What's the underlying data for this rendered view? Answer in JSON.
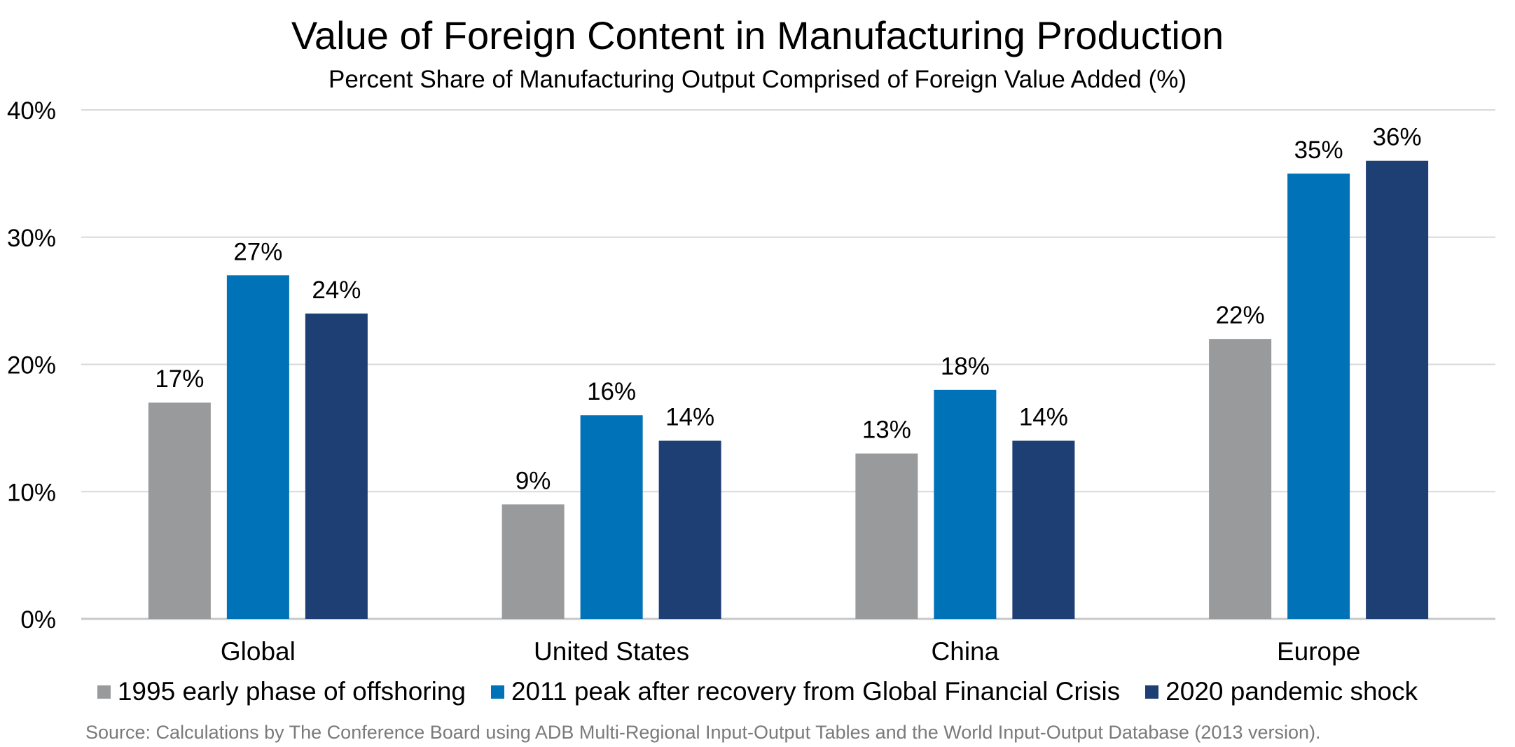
{
  "chart_data": {
    "type": "bar",
    "title": "Value of Foreign Content in Manufacturing Production",
    "subtitle": "Percent Share of Manufacturing Output Comprised of Foreign Value Added (%)",
    "xlabel": "",
    "ylabel": "",
    "categories": [
      "Global",
      "United States",
      "China",
      "Europe"
    ],
    "series": [
      {
        "name": "1995 early phase of offshoring",
        "color": "#999a9c",
        "values": [
          17,
          9,
          13,
          22
        ]
      },
      {
        "name": "2011 peak after recovery from Global Financial Crisis",
        "color": "#0072b8",
        "values": [
          27,
          16,
          18,
          35
        ]
      },
      {
        "name": "2020 pandemic shock",
        "color": "#1d3f73",
        "values": [
          24,
          14,
          14,
          36
        ]
      }
    ],
    "ylim": [
      0,
      40
    ],
    "yticks": [
      0,
      10,
      20,
      30,
      40
    ],
    "ytick_labels": [
      "0%",
      "10%",
      "20%",
      "30%",
      "40%"
    ],
    "value_suffix": "%",
    "grid": true,
    "legend_position": "bottom",
    "source": "Source: Calculations by The Conference Board using ADB Multi-Regional Input-Output Tables and the World Input-Output Database (2013 version)."
  }
}
